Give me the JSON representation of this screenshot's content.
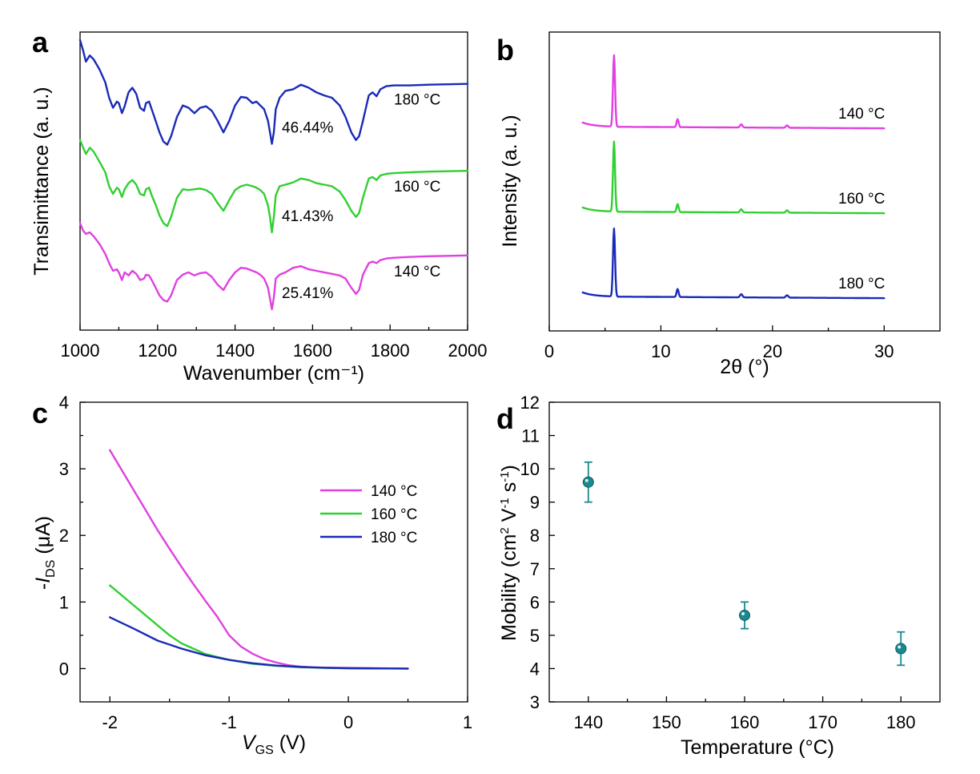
{
  "colors": {
    "c140": "#e040e0",
    "c160": "#30d030",
    "c180": "#1a2ab8",
    "teal": "#1a8a90"
  },
  "chart_data": [
    {
      "panel": "a",
      "type": "line",
      "title": "",
      "xlabel": "Wavenumber (cm⁻¹)",
      "ylabel": "Transimittance  (a. u.)",
      "xlim": [
        1000,
        2000
      ],
      "xticks": [
        "1000",
        "1200",
        "1400",
        "1600",
        "1800",
        "2000"
      ],
      "series": [
        {
          "name": "180 °C",
          "annotation": "46.44%",
          "color": "#1a2ab8",
          "offset": 2.0,
          "x": [
            1000,
            1008,
            1015,
            1025,
            1035,
            1050,
            1065,
            1075,
            1085,
            1095,
            1100,
            1108,
            1115,
            1125,
            1135,
            1145,
            1155,
            1165,
            1170,
            1178,
            1185,
            1195,
            1205,
            1215,
            1225,
            1235,
            1250,
            1265,
            1280,
            1295,
            1310,
            1325,
            1340,
            1355,
            1370,
            1385,
            1400,
            1415,
            1430,
            1445,
            1455,
            1465,
            1475,
            1485,
            1490,
            1495,
            1500,
            1505,
            1515,
            1530,
            1550,
            1570,
            1590,
            1610,
            1630,
            1650,
            1670,
            1685,
            1700,
            1712,
            1720,
            1730,
            1745,
            1755,
            1765,
            1775,
            1790,
            1810,
            1850,
            1900,
            2000
          ],
          "y": [
            1.0,
            0.86,
            0.72,
            0.8,
            0.75,
            0.62,
            0.45,
            0.25,
            0.12,
            0.2,
            0.18,
            0.05,
            0.14,
            0.32,
            0.38,
            0.3,
            0.12,
            0.08,
            0.18,
            0.2,
            0.1,
            -0.05,
            -0.2,
            -0.32,
            -0.36,
            -0.25,
            0.0,
            0.15,
            0.12,
            0.05,
            0.12,
            0.14,
            0.08,
            -0.05,
            -0.2,
            -0.05,
            0.15,
            0.26,
            0.25,
            0.18,
            0.2,
            0.15,
            0.1,
            -0.05,
            -0.2,
            -0.35,
            -0.2,
            0.1,
            0.25,
            0.34,
            0.36,
            0.42,
            0.38,
            0.32,
            0.28,
            0.25,
            0.15,
            0.0,
            -0.2,
            -0.3,
            -0.25,
            -0.05,
            0.28,
            0.32,
            0.27,
            0.36,
            0.4,
            0.41,
            0.41,
            0.42,
            0.43
          ]
        },
        {
          "name": "160 °C",
          "annotation": "41.43%",
          "color": "#30d030",
          "offset": 1.0,
          "x": [
            1000,
            1008,
            1015,
            1025,
            1035,
            1050,
            1065,
            1075,
            1085,
            1095,
            1100,
            1108,
            1115,
            1125,
            1135,
            1145,
            1155,
            1165,
            1170,
            1178,
            1185,
            1195,
            1205,
            1215,
            1225,
            1235,
            1250,
            1265,
            1280,
            1295,
            1310,
            1325,
            1340,
            1355,
            1370,
            1385,
            1400,
            1415,
            1430,
            1445,
            1455,
            1465,
            1475,
            1485,
            1490,
            1495,
            1500,
            1505,
            1515,
            1530,
            1550,
            1570,
            1590,
            1610,
            1630,
            1650,
            1670,
            1685,
            1700,
            1712,
            1720,
            1730,
            1745,
            1755,
            1765,
            1775,
            1790,
            1810,
            1850,
            1900,
            2000
          ],
          "y": [
            0.7,
            0.6,
            0.52,
            0.6,
            0.55,
            0.42,
            0.28,
            0.1,
            0.0,
            0.08,
            0.06,
            -0.04,
            0.06,
            0.14,
            0.18,
            0.12,
            0.0,
            -0.02,
            0.06,
            0.08,
            -0.02,
            -0.14,
            -0.28,
            -0.38,
            -0.42,
            -0.3,
            -0.05,
            0.06,
            0.05,
            0.06,
            0.07,
            0.05,
            0.0,
            -0.12,
            -0.22,
            -0.08,
            0.05,
            0.1,
            0.12,
            0.1,
            0.08,
            0.05,
            0.0,
            -0.15,
            -0.3,
            -0.5,
            -0.3,
            -0.02,
            0.1,
            0.12,
            0.15,
            0.2,
            0.18,
            0.14,
            0.12,
            0.1,
            0.03,
            -0.08,
            -0.22,
            -0.3,
            -0.25,
            -0.05,
            0.2,
            0.22,
            0.18,
            0.24,
            0.26,
            0.27,
            0.28,
            0.29,
            0.3
          ]
        },
        {
          "name": "140 °C",
          "annotation": "25.41%",
          "color": "#e040e0",
          "offset": 0.0,
          "x": [
            1000,
            1008,
            1015,
            1025,
            1035,
            1050,
            1065,
            1075,
            1085,
            1095,
            1100,
            1108,
            1115,
            1125,
            1135,
            1145,
            1155,
            1165,
            1170,
            1178,
            1185,
            1195,
            1205,
            1215,
            1225,
            1235,
            1250,
            1265,
            1280,
            1295,
            1310,
            1325,
            1340,
            1355,
            1370,
            1385,
            1400,
            1415,
            1430,
            1445,
            1455,
            1465,
            1475,
            1485,
            1490,
            1495,
            1500,
            1505,
            1515,
            1530,
            1550,
            1570,
            1590,
            1610,
            1630,
            1650,
            1670,
            1685,
            1700,
            1712,
            1720,
            1730,
            1745,
            1755,
            1765,
            1775,
            1790,
            1810,
            1850,
            1900,
            2000
          ],
          "y": [
            0.62,
            0.52,
            0.48,
            0.5,
            0.45,
            0.35,
            0.22,
            0.1,
            0.0,
            0.02,
            -0.02,
            -0.12,
            -0.02,
            -0.06,
            0.0,
            -0.04,
            -0.12,
            -0.1,
            -0.05,
            -0.06,
            -0.12,
            -0.22,
            -0.32,
            -0.38,
            -0.4,
            -0.32,
            -0.12,
            -0.05,
            -0.02,
            -0.06,
            -0.03,
            -0.02,
            -0.08,
            -0.18,
            -0.25,
            -0.12,
            -0.02,
            0.04,
            0.03,
            0.0,
            -0.02,
            -0.05,
            -0.1,
            -0.22,
            -0.36,
            -0.5,
            -0.35,
            -0.1,
            -0.05,
            -0.02,
            0.04,
            0.06,
            0.02,
            0.0,
            -0.02,
            -0.04,
            -0.06,
            -0.1,
            -0.22,
            -0.3,
            -0.25,
            -0.05,
            0.1,
            0.12,
            0.1,
            0.14,
            0.16,
            0.17,
            0.18,
            0.19,
            0.2
          ]
        }
      ]
    },
    {
      "panel": "b",
      "type": "line",
      "title": "",
      "xlabel": "2θ (°)",
      "ylabel": "Intensity  (a. u.)",
      "xlim": [
        0,
        35
      ],
      "xticks": [
        "0",
        "10",
        "20",
        "30"
      ],
      "peaks_2theta": [
        5.8,
        11.5,
        17.2,
        21.3
      ],
      "series": [
        {
          "name": "140 °C",
          "color": "#e040e0",
          "offset": 2.0
        },
        {
          "name": "160 °C",
          "color": "#30d030",
          "offset": 1.0
        },
        {
          "name": "180 °C",
          "color": "#1a2ab8",
          "offset": 0.0
        }
      ]
    },
    {
      "panel": "c",
      "type": "line",
      "title": "",
      "xlabel_italic": "V",
      "xlabel_sub": "GS",
      "xlabel_rest": " (V)",
      "ylabel_pre": "-",
      "ylabel_italic": "I",
      "ylabel_sub": "DS",
      "ylabel_rest": " (μA)",
      "xlim": [
        -2.25,
        1.0
      ],
      "ylim": [
        -0.5,
        4.0
      ],
      "xticks": [
        "-2",
        "-1",
        "0",
        "1"
      ],
      "yticks": [
        "0",
        "1",
        "2",
        "3",
        "4"
      ],
      "legend_position": "top-right",
      "series": [
        {
          "name": "140 °C",
          "color": "#e040e0",
          "x": [
            -2.0,
            -1.9,
            -1.8,
            -1.7,
            -1.6,
            -1.5,
            -1.4,
            -1.3,
            -1.2,
            -1.1,
            -1.0,
            -0.9,
            -0.8,
            -0.7,
            -0.6,
            -0.5,
            -0.4,
            -0.3,
            -0.2,
            0.0,
            0.5
          ],
          "y": [
            3.28,
            2.98,
            2.68,
            2.38,
            2.08,
            1.8,
            1.53,
            1.27,
            1.02,
            0.78,
            0.5,
            0.33,
            0.22,
            0.14,
            0.09,
            0.05,
            0.03,
            0.02,
            0.015,
            0.01,
            0.0
          ]
        },
        {
          "name": "160 °C",
          "color": "#30d030",
          "x": [
            -2.0,
            -1.8,
            -1.6,
            -1.5,
            -1.4,
            -1.2,
            -1.0,
            -0.8,
            -0.6,
            -0.4,
            -0.2,
            0.0,
            0.5
          ],
          "y": [
            1.25,
            0.95,
            0.65,
            0.5,
            0.38,
            0.22,
            0.13,
            0.07,
            0.04,
            0.02,
            0.01,
            0.005,
            0.0
          ]
        },
        {
          "name": "180 °C",
          "color": "#1a2ab8",
          "x": [
            -2.0,
            -1.8,
            -1.6,
            -1.4,
            -1.2,
            -1.0,
            -0.8,
            -0.6,
            -0.4,
            -0.2,
            0.0,
            0.5
          ],
          "y": [
            0.77,
            0.6,
            0.42,
            0.3,
            0.2,
            0.13,
            0.08,
            0.045,
            0.025,
            0.012,
            0.005,
            0.0
          ]
        }
      ]
    },
    {
      "panel": "d",
      "type": "scatter",
      "title": "",
      "xlabel": "Temperature (°C)",
      "ylabel_pre": "Mobility (cm",
      "ylabel_sup1": "2",
      "ylabel_mid": " V",
      "ylabel_sup2": "-1",
      "ylabel_mid2": " s",
      "ylabel_sup3": "-1",
      "ylabel_post": ")",
      "xlim": [
        135,
        185
      ],
      "ylim": [
        3,
        12
      ],
      "xticks": [
        "140",
        "150",
        "160",
        "170",
        "180"
      ],
      "yticks": [
        "3",
        "4",
        "5",
        "6",
        "7",
        "8",
        "9",
        "10",
        "11",
        "12"
      ],
      "x": [
        140,
        160,
        180
      ],
      "y": [
        9.6,
        5.6,
        4.6
      ],
      "err_low": [
        0.6,
        0.4,
        0.5
      ],
      "err_high": [
        0.6,
        0.4,
        0.5
      ],
      "color": "#1a8a90"
    }
  ]
}
